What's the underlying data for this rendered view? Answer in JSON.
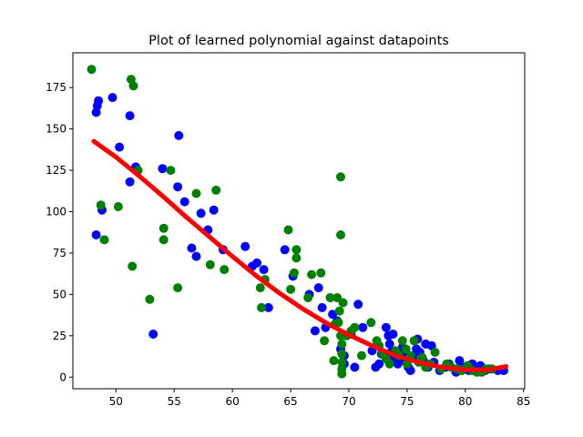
{
  "chart_data": {
    "type": "scatter",
    "title": "Plot of learned polynomial against datapoints",
    "xlabel": "",
    "ylabel": "",
    "xlim": [
      46.3,
      85.1
    ],
    "ylim": [
      -7,
      196
    ],
    "xticks": [
      50,
      55,
      60,
      65,
      70,
      75,
      80,
      85
    ],
    "yticks": [
      0,
      25,
      50,
      75,
      100,
      125,
      150,
      175
    ],
    "grid": false,
    "legend": "none",
    "series": [
      {
        "kind": "scatter",
        "color": "#0000ff",
        "points": [
          [
            48.3,
            160
          ],
          [
            48.4,
            164
          ],
          [
            48.5,
            167
          ],
          [
            48.3,
            86
          ],
          [
            48.8,
            101
          ],
          [
            49.7,
            169
          ],
          [
            50.3,
            139
          ],
          [
            51.2,
            158
          ],
          [
            51.2,
            118
          ],
          [
            51.7,
            127
          ],
          [
            53.2,
            26
          ],
          [
            54.0,
            126
          ],
          [
            55.3,
            115
          ],
          [
            55.4,
            146
          ],
          [
            55.9,
            106
          ],
          [
            56.5,
            78
          ],
          [
            56.9,
            73
          ],
          [
            57.3,
            99
          ],
          [
            57.9,
            89
          ],
          [
            58.4,
            101
          ],
          [
            59.2,
            77
          ],
          [
            61.1,
            79
          ],
          [
            61.7,
            67
          ],
          [
            62.1,
            69
          ],
          [
            62.7,
            65
          ],
          [
            63.1,
            42
          ],
          [
            64.5,
            77
          ],
          [
            65.2,
            61
          ],
          [
            66.6,
            50
          ],
          [
            67.1,
            28
          ],
          [
            67.4,
            54
          ],
          [
            67.7,
            42
          ],
          [
            68.0,
            30
          ],
          [
            68.6,
            38
          ],
          [
            69.0,
            34
          ],
          [
            69.3,
            17
          ],
          [
            69.6,
            13
          ],
          [
            69.6,
            8
          ],
          [
            70.2,
            26
          ],
          [
            70.5,
            6
          ],
          [
            70.8,
            44
          ],
          [
            71.2,
            30
          ],
          [
            72.0,
            16
          ],
          [
            72.3,
            6
          ],
          [
            72.6,
            8
          ],
          [
            72.8,
            14
          ],
          [
            73.2,
            30
          ],
          [
            73.4,
            25
          ],
          [
            73.5,
            20
          ],
          [
            73.8,
            26
          ],
          [
            73.6,
            15
          ],
          [
            73.9,
            12
          ],
          [
            74.2,
            8
          ],
          [
            74.5,
            10
          ],
          [
            74.6,
            18
          ],
          [
            74.9,
            15
          ],
          [
            75.1,
            6
          ],
          [
            75.3,
            4
          ],
          [
            75.5,
            12
          ],
          [
            75.8,
            17
          ],
          [
            75.9,
            23
          ],
          [
            76.1,
            15
          ],
          [
            76.4,
            10
          ],
          [
            76.6,
            20
          ],
          [
            76.8,
            6
          ],
          [
            77.1,
            19
          ],
          [
            77.3,
            9
          ],
          [
            77.8,
            4
          ],
          [
            78.3,
            6
          ],
          [
            78.6,
            8
          ],
          [
            79.2,
            3
          ],
          [
            79.5,
            10
          ],
          [
            79.9,
            6
          ],
          [
            80.3,
            4
          ],
          [
            80.6,
            8
          ],
          [
            80.9,
            5
          ],
          [
            81.3,
            7
          ],
          [
            81.7,
            4
          ],
          [
            82.1,
            5
          ],
          [
            82.8,
            4
          ],
          [
            83.3,
            4
          ]
        ]
      },
      {
        "kind": "scatter",
        "color": "#008000",
        "points": [
          [
            47.9,
            186
          ],
          [
            48.7,
            104
          ],
          [
            49.0,
            83
          ],
          [
            50.2,
            103
          ],
          [
            51.3,
            180
          ],
          [
            51.5,
            176
          ],
          [
            51.4,
            67
          ],
          [
            51.9,
            125
          ],
          [
            52.9,
            47
          ],
          [
            54.1,
            90
          ],
          [
            54.1,
            83
          ],
          [
            54.7,
            125
          ],
          [
            55.3,
            54
          ],
          [
            56.9,
            111
          ],
          [
            58.1,
            68
          ],
          [
            58.6,
            113
          ],
          [
            59.3,
            65
          ],
          [
            62.4,
            54
          ],
          [
            62.5,
            42
          ],
          [
            62.8,
            59
          ],
          [
            64.8,
            89
          ],
          [
            65.0,
            53
          ],
          [
            65.3,
            63
          ],
          [
            65.5,
            72
          ],
          [
            65.5,
            77
          ],
          [
            66.5,
            48
          ],
          [
            66.8,
            62
          ],
          [
            67.6,
            63
          ],
          [
            67.9,
            22
          ],
          [
            68.4,
            48
          ],
          [
            68.7,
            10
          ],
          [
            68.8,
            32
          ],
          [
            69.0,
            48
          ],
          [
            69.2,
            40
          ],
          [
            69.3,
            121
          ],
          [
            69.3,
            86
          ],
          [
            69.1,
            33
          ],
          [
            69.3,
            25
          ],
          [
            69.4,
            20
          ],
          [
            69.4,
            14
          ],
          [
            69.4,
            9
          ],
          [
            69.4,
            5
          ],
          [
            69.4,
            2
          ],
          [
            69.5,
            45
          ],
          [
            69.8,
            25
          ],
          [
            70.2,
            28
          ],
          [
            70.5,
            30
          ],
          [
            71.1,
            13
          ],
          [
            71.9,
            33
          ],
          [
            72.4,
            22
          ],
          [
            72.6,
            19
          ],
          [
            72.9,
            14
          ],
          [
            73.2,
            11
          ],
          [
            73.5,
            8
          ],
          [
            74.0,
            16
          ],
          [
            74.3,
            13
          ],
          [
            74.6,
            22
          ],
          [
            74.9,
            17
          ],
          [
            75.0,
            8
          ],
          [
            75.3,
            13
          ],
          [
            75.6,
            22
          ],
          [
            76.0,
            9
          ],
          [
            76.3,
            12
          ],
          [
            76.6,
            6
          ],
          [
            77.0,
            8
          ],
          [
            77.4,
            15
          ],
          [
            77.9,
            5
          ],
          [
            78.4,
            8
          ],
          [
            78.8,
            6
          ],
          [
            79.3,
            5
          ],
          [
            79.7,
            4
          ],
          [
            80.2,
            7
          ],
          [
            80.6,
            4
          ],
          [
            81.0,
            3
          ],
          [
            81.4,
            3
          ],
          [
            81.8,
            5
          ],
          [
            82.3,
            5
          ]
        ]
      },
      {
        "kind": "line",
        "color": "#ff0000",
        "points": [
          [
            48.1,
            142.5
          ],
          [
            50.0,
            133.0
          ],
          [
            52.0,
            121.5
          ],
          [
            54.0,
            109.5
          ],
          [
            56.0,
            97.0
          ],
          [
            58.0,
            85.0
          ],
          [
            60.0,
            73.0
          ],
          [
            62.0,
            61.5
          ],
          [
            64.0,
            51.0
          ],
          [
            66.0,
            41.5
          ],
          [
            68.0,
            33.0
          ],
          [
            70.0,
            25.5
          ],
          [
            72.0,
            19.0
          ],
          [
            74.0,
            13.0
          ],
          [
            76.0,
            9.0
          ],
          [
            78.0,
            6.0
          ],
          [
            80.0,
            4.5
          ],
          [
            82.0,
            4.5
          ],
          [
            83.5,
            6.5
          ]
        ]
      }
    ]
  }
}
